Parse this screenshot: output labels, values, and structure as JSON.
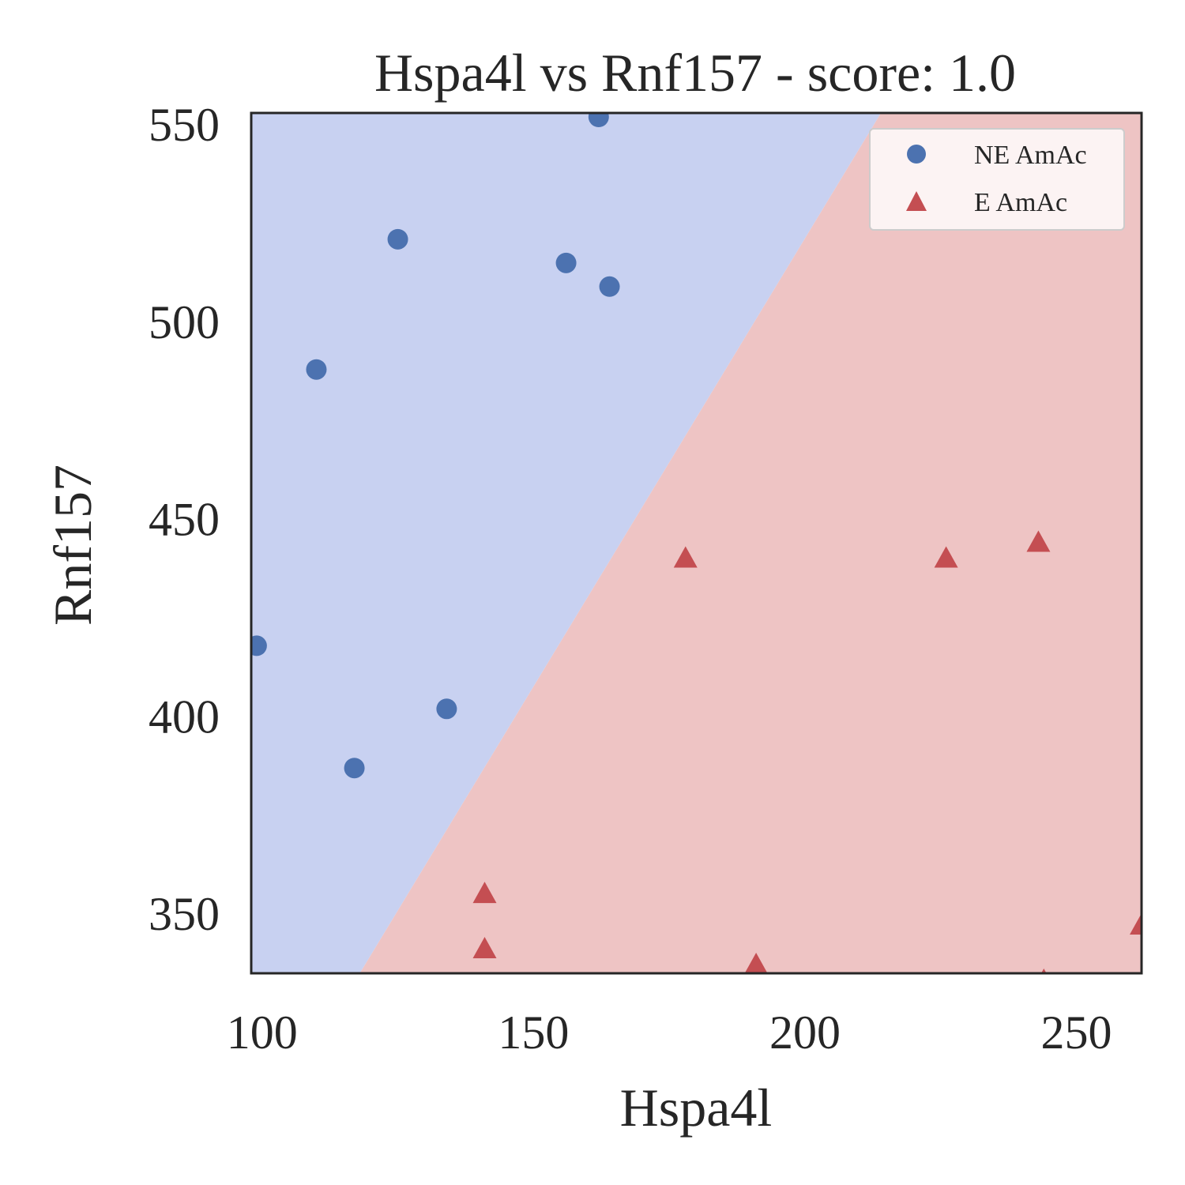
{
  "chart_data": {
    "type": "scatter",
    "title": "Hspa4l vs Rnf157 - score: 1.0",
    "xlabel": "Hspa4l",
    "ylabel": "Rnf157",
    "xlim": [
      98,
      262
    ],
    "ylim": [
      335,
      553
    ],
    "xticks": [
      100,
      150,
      200,
      250
    ],
    "yticks": [
      350,
      400,
      450,
      500,
      550
    ],
    "grid": false,
    "legend_position": "top-right",
    "decision_boundary": [
      [
        118,
        335
      ],
      [
        214,
        553
      ]
    ],
    "regions": [
      {
        "label": "NE AmAc",
        "color": "#c8d1f1",
        "side": "upper-left"
      },
      {
        "label": "E AmAc",
        "color": "#eec4c4",
        "side": "lower-right"
      }
    ],
    "series": [
      {
        "name": "NE AmAc",
        "marker": "circle",
        "color": "#4c72b0",
        "points": [
          [
            162,
            552
          ],
          [
            125,
            521
          ],
          [
            156,
            515
          ],
          [
            164,
            509
          ],
          [
            110,
            488
          ],
          [
            99,
            418
          ],
          [
            134,
            402
          ],
          [
            117,
            387
          ]
        ]
      },
      {
        "name": "E AmAc",
        "marker": "triangle",
        "color": "#c44e52",
        "points": [
          [
            178,
            440
          ],
          [
            226,
            440
          ],
          [
            243,
            444
          ],
          [
            141,
            355
          ],
          [
            141,
            341
          ],
          [
            191,
            337
          ],
          [
            244,
            333
          ],
          [
            262,
            347
          ]
        ]
      }
    ]
  }
}
